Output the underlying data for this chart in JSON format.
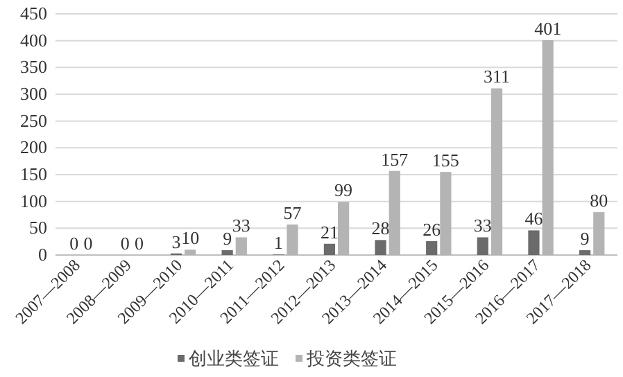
{
  "chart_data": {
    "type": "bar",
    "categories": [
      "2007—2008",
      "2008—2009",
      "2009—2010",
      "2010—2011",
      "2011—2012",
      "2012—2013",
      "2013—2014",
      "2014—2015",
      "2015—2016",
      "2016—2017",
      "2017—2018"
    ],
    "series": [
      {
        "name": "创业类签证",
        "color": "#6b6b6b",
        "values": [
          0,
          0,
          3,
          9,
          1,
          21,
          28,
          26,
          33,
          46,
          9
        ]
      },
      {
        "name": "投资类签证",
        "color": "#b4b4b4",
        "values": [
          0,
          0,
          10,
          33,
          57,
          99,
          157,
          155,
          311,
          401,
          80
        ]
      }
    ],
    "ylim": [
      0,
      450
    ],
    "yticks": [
      0,
      50,
      100,
      150,
      200,
      250,
      300,
      350,
      400,
      450
    ],
    "grid": "y",
    "legend": "bottom",
    "data_labels": true
  }
}
